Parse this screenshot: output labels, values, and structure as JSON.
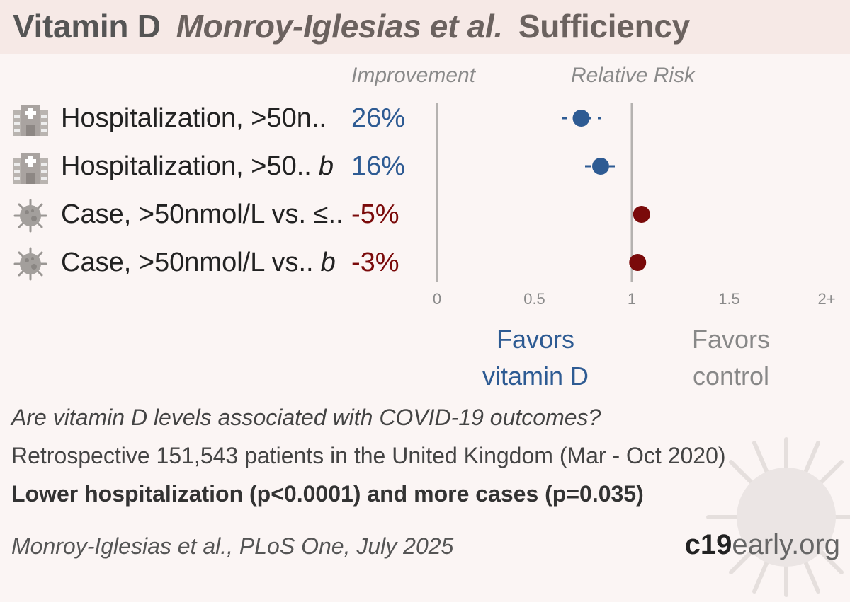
{
  "header": {
    "subject": "Vitamin D",
    "study": "Monroy-Iglesias et al.",
    "comparison": "Sufficiency"
  },
  "columns": {
    "improvement": "Improvement",
    "relative_risk": "Relative Risk"
  },
  "colors": {
    "favorable": "#2e5b93",
    "unfavorable": "#7a0a0a",
    "header_bg": "#f6e9e6",
    "background": "#fbf5f4"
  },
  "chart_data": {
    "type": "forest",
    "xlabel": "",
    "xlim": [
      0,
      2
    ],
    "ticks": [
      "0",
      "0.5",
      "1",
      "1.5",
      "2+"
    ],
    "tick_values": [
      0,
      0.5,
      1,
      1.5,
      2
    ],
    "rows": [
      {
        "label": "Hospitalization, >50n..",
        "suffix": "",
        "icon": "hospital-icon",
        "improvement": "26%",
        "rr": 0.74,
        "ci": [
          0.64,
          0.84
        ],
        "favorable": true
      },
      {
        "label": "Hospitalization, >50..",
        "suffix": "b",
        "icon": "hospital-icon",
        "improvement": "16%",
        "rr": 0.84,
        "ci": [
          0.76,
          0.94
        ],
        "favorable": true
      },
      {
        "label": "Case, >50nmol/L vs. ≤..",
        "suffix": "",
        "icon": "virus-icon",
        "improvement": "-5%",
        "rr": 1.05,
        "ci": [
          1.03,
          1.07
        ],
        "favorable": false
      },
      {
        "label": "Case, >50nmol/L vs..",
        "suffix": "b",
        "icon": "virus-icon",
        "improvement": "-3%",
        "rr": 1.03,
        "ci": [
          1.01,
          1.05
        ],
        "favorable": false
      }
    ],
    "favors_left": [
      "Favors",
      "vitamin D"
    ],
    "favors_right": [
      "Favors",
      "control"
    ]
  },
  "summary": {
    "question": "Are vitamin D levels associated with COVID-19 outcomes?",
    "detail": "Retrospective 151,543 patients in the United Kingdom (Mar - Oct 2020)",
    "result": "Lower hospitalization (p<0.0001) and more cases (p=0.035)"
  },
  "citation": "Monroy-Iglesias et al., PLoS One, July 2025",
  "brand": {
    "bold": "c19",
    "rest": "early.org"
  }
}
